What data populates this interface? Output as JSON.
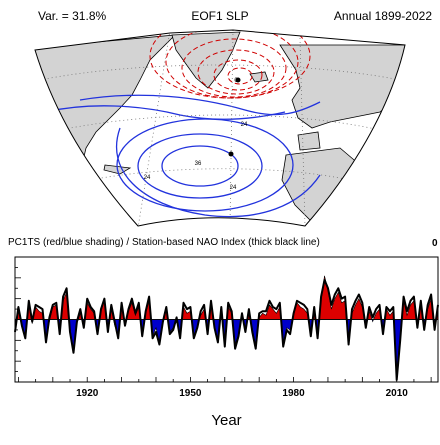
{
  "header": {
    "variance": "Var. = 31.8%",
    "title": "EOF1 SLP",
    "period": "Annual 1899-2022"
  },
  "map": {
    "contour_labels": [
      "0",
      "24",
      "24",
      "24",
      "36"
    ],
    "colors": {
      "land": "#d3d3d3",
      "ocean": "#ffffff",
      "positive_contour": "#d00000",
      "negative_contour": "#2233dd"
    }
  },
  "chart_data": {
    "type": "area",
    "title": "PC1TS (red/blue shading) / Station-based NAO Index (thick black line)",
    "corner_label": "0",
    "xlabel": "Year",
    "ylabel": "",
    "xlim": [
      1899,
      2022
    ],
    "ylim": [
      -3,
      3
    ],
    "xticks": [
      1920,
      1950,
      1980,
      2010
    ],
    "colors": {
      "positive": "#dd0000",
      "negative": "#0000cc",
      "line": "#000000"
    },
    "x": [
      1899,
      1900,
      1901,
      1902,
      1903,
      1904,
      1905,
      1906,
      1907,
      1908,
      1909,
      1910,
      1911,
      1912,
      1913,
      1914,
      1915,
      1916,
      1917,
      1918,
      1919,
      1920,
      1921,
      1922,
      1923,
      1924,
      1925,
      1926,
      1927,
      1928,
      1929,
      1930,
      1931,
      1932,
      1933,
      1934,
      1935,
      1936,
      1937,
      1938,
      1939,
      1940,
      1941,
      1942,
      1943,
      1944,
      1945,
      1946,
      1947,
      1948,
      1949,
      1950,
      1951,
      1952,
      1953,
      1954,
      1955,
      1956,
      1957,
      1958,
      1959,
      1960,
      1961,
      1962,
      1963,
      1964,
      1965,
      1966,
      1967,
      1968,
      1969,
      1970,
      1971,
      1972,
      1973,
      1974,
      1975,
      1976,
      1977,
      1978,
      1979,
      1980,
      1981,
      1982,
      1983,
      1984,
      1985,
      1986,
      1987,
      1988,
      1989,
      1990,
      1991,
      1992,
      1993,
      1994,
      1995,
      1996,
      1997,
      1998,
      1999,
      2000,
      2001,
      2002,
      2003,
      2004,
      2005,
      2006,
      2007,
      2008,
      2009,
      2010,
      2011,
      2012,
      2013,
      2014,
      2015,
      2016,
      2017,
      2018,
      2019,
      2020,
      2021,
      2022
    ],
    "series": [
      {
        "name": "PC1TS",
        "values": [
          -0.4,
          0.5,
          -0.3,
          -0.8,
          0.7,
          -0.2,
          0.6,
          0.4,
          0.3,
          -0.9,
          -0.1,
          0.6,
          0.7,
          -0.5,
          0.9,
          1.3,
          -0.4,
          -1.5,
          -0.2,
          0.3,
          -0.3,
          0.8,
          0.5,
          0.3,
          -0.6,
          0.4,
          0.9,
          -0.4,
          0.5,
          -0.3,
          -0.7,
          0.7,
          -0.2,
          0.4,
          0.8,
          0.2,
          0.6,
          -0.7,
          0.3,
          0.9,
          -0.8,
          -0.4,
          -1.1,
          -0.2,
          0.5,
          -0.6,
          -0.4,
          -0.1,
          -0.7,
          0.6,
          0.3,
          0.4,
          -0.8,
          -0.3,
          0.2,
          0.5,
          -0.5,
          0.7,
          -0.3,
          -1.0,
          0.4,
          -1.2,
          0.6,
          0.3,
          -1.2,
          -0.7,
          0.2,
          -0.5,
          0.3,
          -0.4,
          -1.3,
          0.1,
          0.3,
          0.2,
          0.7,
          0.5,
          0.3,
          0.6,
          -1.2,
          -0.4,
          -0.5,
          0.2,
          0.8,
          0.6,
          0.5,
          0.3,
          -0.7,
          0.4,
          -0.8,
          0.9,
          2.1,
          1.4,
          0.5,
          1.0,
          1.3,
          0.8,
          0.9,
          -1.1,
          0.3,
          0.7,
          1.0,
          0.6,
          -0.3,
          0.4,
          -0.1,
          0.3,
          0.5,
          -0.5,
          0.5,
          0.2,
          0.4,
          -2.5,
          -0.8,
          0.9,
          0.2,
          0.7,
          0.9,
          -0.3,
          0.7,
          -0.4,
          0.5,
          1.0,
          -0.3,
          0.6
        ]
      },
      {
        "name": "Station-based NAO Index",
        "values": [
          -0.6,
          0.6,
          -0.3,
          -0.9,
          0.9,
          -0.1,
          0.7,
          0.6,
          0.5,
          -1.1,
          0.1,
          0.7,
          0.8,
          -0.7,
          1.1,
          1.5,
          -0.6,
          -1.6,
          -0.1,
          0.5,
          -0.4,
          1.0,
          0.6,
          0.4,
          -0.7,
          0.5,
          1.0,
          -0.6,
          0.7,
          -0.1,
          -0.9,
          0.8,
          -0.3,
          0.5,
          1.0,
          0.3,
          0.8,
          -0.8,
          0.4,
          1.1,
          -0.9,
          -0.6,
          -1.2,
          -0.1,
          0.6,
          -0.7,
          -0.5,
          0.1,
          -0.9,
          0.8,
          0.5,
          0.6,
          -0.9,
          -0.4,
          0.4,
          0.7,
          -0.7,
          0.9,
          -0.4,
          -1.1,
          0.6,
          -1.3,
          0.8,
          0.4,
          -1.4,
          -0.8,
          0.3,
          -0.6,
          0.5,
          -0.6,
          -1.4,
          0.3,
          0.4,
          0.4,
          0.9,
          0.6,
          0.5,
          0.8,
          -1.3,
          -0.5,
          -0.7,
          0.3,
          0.9,
          0.8,
          0.7,
          0.5,
          -0.8,
          0.6,
          -0.9,
          1.1,
          1.9,
          1.5,
          0.7,
          1.2,
          1.5,
          1.0,
          1.1,
          -1.2,
          0.5,
          0.9,
          1.2,
          0.8,
          -0.4,
          0.6,
          0.1,
          0.5,
          0.7,
          -0.7,
          0.6,
          0.4,
          0.6,
          -2.9,
          -1.0,
          1.1,
          0.4,
          0.9,
          1.1,
          -0.4,
          0.9,
          -0.5,
          0.7,
          1.2,
          -0.5,
          0.7
        ]
      }
    ]
  }
}
